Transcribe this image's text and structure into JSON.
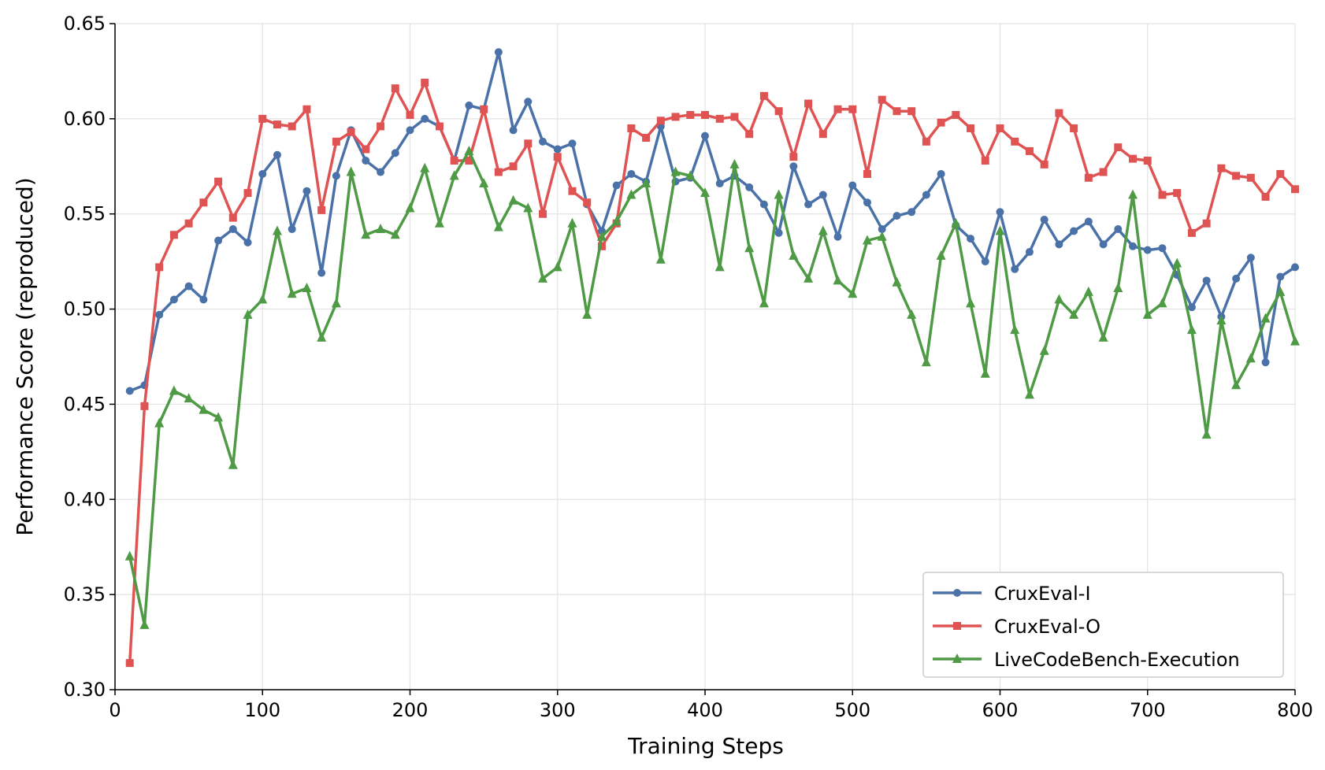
{
  "chart_data": {
    "type": "line",
    "title": "",
    "xlabel": "Training Steps",
    "ylabel": "Performance Score (reproduced)",
    "xlim": [
      0,
      800
    ],
    "ylim": [
      0.3,
      0.65
    ],
    "xticks": [
      0,
      100,
      200,
      300,
      400,
      500,
      600,
      700,
      800
    ],
    "yticks": [
      0.3,
      0.35,
      0.4,
      0.45,
      0.5,
      0.55,
      0.6,
      0.65
    ],
    "xtick_labels": [
      "0",
      "100",
      "200",
      "300",
      "400",
      "500",
      "600",
      "700",
      "800"
    ],
    "ytick_labels": [
      "0.30",
      "0.35",
      "0.40",
      "0.45",
      "0.50",
      "0.55",
      "0.60",
      "0.65"
    ],
    "grid": true,
    "legend_position": "bottom-right",
    "x": [
      10,
      20,
      30,
      40,
      50,
      60,
      70,
      80,
      90,
      100,
      110,
      120,
      130,
      140,
      150,
      160,
      170,
      180,
      190,
      200,
      210,
      220,
      230,
      240,
      250,
      260,
      270,
      280,
      290,
      300,
      310,
      320,
      330,
      340,
      350,
      360,
      370,
      380,
      390,
      400,
      410,
      420,
      430,
      440,
      450,
      460,
      470,
      480,
      490,
      500,
      510,
      520,
      530,
      540,
      550,
      560,
      570,
      580,
      590,
      600,
      610,
      620,
      630,
      640,
      650,
      660,
      670,
      680,
      690,
      700,
      710,
      720,
      730,
      740,
      750,
      760,
      770,
      780,
      790,
      800
    ],
    "series": [
      {
        "name": "CruxEval-I",
        "color": "#4a72a8",
        "marker": "circle",
        "values": [
          0.457,
          0.46,
          0.497,
          0.505,
          0.512,
          0.505,
          0.536,
          0.542,
          0.535,
          0.571,
          0.581,
          0.542,
          0.562,
          0.519,
          0.57,
          0.594,
          0.578,
          0.572,
          0.582,
          0.594,
          0.6,
          0.596,
          0.578,
          0.607,
          0.605,
          0.635,
          0.594,
          0.609,
          0.588,
          0.584,
          0.587,
          0.555,
          0.541,
          0.565,
          0.571,
          0.567,
          0.596,
          0.567,
          0.569,
          0.591,
          0.566,
          0.57,
          0.564,
          0.555,
          0.54,
          0.575,
          0.555,
          0.56,
          0.538,
          0.565,
          0.556,
          0.542,
          0.549,
          0.551,
          0.56,
          0.571,
          0.544,
          0.537,
          0.525,
          0.551,
          0.521,
          0.53,
          0.547,
          0.534,
          0.541,
          0.546,
          0.534,
          0.542,
          0.533,
          0.531,
          0.532,
          0.518,
          0.501,
          0.515,
          0.496,
          0.516,
          0.527,
          0.472,
          0.517,
          0.522
        ]
      },
      {
        "name": "CruxEval-O",
        "color": "#e05353",
        "marker": "square",
        "values": [
          0.314,
          0.449,
          0.522,
          0.539,
          0.545,
          0.556,
          0.567,
          0.548,
          0.561,
          0.6,
          0.597,
          0.596,
          0.605,
          0.552,
          0.588,
          0.593,
          0.584,
          0.596,
          0.616,
          0.602,
          0.619,
          0.596,
          0.578,
          0.578,
          0.605,
          0.572,
          0.575,
          0.587,
          0.55,
          0.58,
          0.562,
          0.556,
          0.533,
          0.545,
          0.595,
          0.59,
          0.599,
          0.601,
          0.602,
          0.602,
          0.6,
          0.601,
          0.592,
          0.612,
          0.604,
          0.58,
          0.608,
          0.592,
          0.605,
          0.605,
          0.571,
          0.61,
          0.604,
          0.604,
          0.588,
          0.598,
          0.602,
          0.595,
          0.578,
          0.595,
          0.588,
          0.583,
          0.576,
          0.603,
          0.595,
          0.569,
          0.572,
          0.585,
          0.579,
          0.578,
          0.56,
          0.561,
          0.54,
          0.545,
          0.574,
          0.57,
          0.569,
          0.559,
          0.571,
          0.563
        ]
      },
      {
        "name": "LiveCodeBench-Execution",
        "color": "#4e9a45",
        "marker": "triangle",
        "values": [
          0.37,
          0.334,
          0.44,
          0.457,
          0.453,
          0.447,
          0.443,
          0.418,
          0.497,
          0.505,
          0.541,
          0.508,
          0.511,
          0.485,
          0.503,
          0.572,
          0.539,
          0.542,
          0.539,
          0.553,
          0.574,
          0.545,
          0.57,
          0.583,
          0.566,
          0.543,
          0.557,
          0.553,
          0.516,
          0.522,
          0.545,
          0.497,
          0.538,
          0.546,
          0.56,
          0.566,
          0.526,
          0.572,
          0.57,
          0.561,
          0.522,
          0.576,
          0.532,
          0.503,
          0.56,
          0.528,
          0.516,
          0.541,
          0.515,
          0.508,
          0.536,
          0.538,
          0.514,
          0.497,
          0.472,
          0.528,
          0.545,
          0.503,
          0.466,
          0.541,
          0.489,
          0.455,
          0.478,
          0.505,
          0.497,
          0.509,
          0.485,
          0.511,
          0.56,
          0.497,
          0.503,
          0.524,
          0.489,
          0.434,
          0.494,
          0.46,
          0.474,
          0.495,
          0.509,
          0.483
        ]
      }
    ]
  }
}
